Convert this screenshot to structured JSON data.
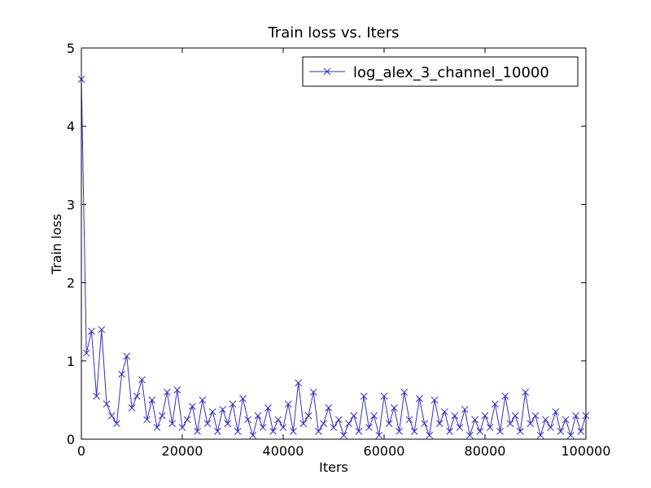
{
  "chart_data": {
    "type": "line",
    "title": "Train loss  vs. Iters",
    "xlabel": "Iters",
    "ylabel": "Train loss",
    "x": [
      0,
      1000,
      2000,
      3000,
      4000,
      5000,
      6000,
      7000,
      8000,
      9000,
      10000,
      11000,
      12000,
      13000,
      14000,
      15000,
      16000,
      17000,
      18000,
      19000,
      20000,
      21000,
      22000,
      23000,
      24000,
      25000,
      26000,
      27000,
      28000,
      29000,
      30000,
      31000,
      32000,
      33000,
      34000,
      35000,
      36000,
      37000,
      38000,
      39000,
      40000,
      41000,
      42000,
      43000,
      44000,
      45000,
      46000,
      47000,
      48000,
      49000,
      50000,
      51000,
      52000,
      53000,
      54000,
      55000,
      56000,
      57000,
      58000,
      59000,
      60000,
      61000,
      62000,
      63000,
      64000,
      65000,
      66000,
      67000,
      68000,
      69000,
      70000,
      71000,
      72000,
      73000,
      74000,
      75000,
      76000,
      77000,
      78000,
      79000,
      80000,
      81000,
      82000,
      83000,
      84000,
      85000,
      86000,
      87000,
      88000,
      89000,
      90000,
      91000,
      92000,
      93000,
      94000,
      95000,
      96000,
      97000,
      98000,
      99000,
      100000
    ],
    "series": [
      {
        "name": "log_alex_3_channel_10000",
        "color": "#3030c0",
        "marker": "x",
        "values": [
          4.6,
          1.1,
          1.38,
          0.55,
          1.4,
          0.45,
          0.3,
          0.2,
          0.83,
          1.06,
          0.4,
          0.55,
          0.76,
          0.25,
          0.5,
          0.15,
          0.3,
          0.6,
          0.2,
          0.63,
          0.15,
          0.25,
          0.42,
          0.1,
          0.5,
          0.2,
          0.35,
          0.1,
          0.38,
          0.2,
          0.45,
          0.1,
          0.52,
          0.25,
          0.05,
          0.3,
          0.15,
          0.4,
          0.1,
          0.25,
          0.15,
          0.45,
          0.1,
          0.72,
          0.2,
          0.3,
          0.6,
          0.1,
          0.2,
          0.4,
          0.15,
          0.25,
          0.05,
          0.2,
          0.3,
          0.1,
          0.55,
          0.15,
          0.3,
          0.05,
          0.55,
          0.2,
          0.4,
          0.1,
          0.6,
          0.25,
          0.1,
          0.52,
          0.2,
          0.05,
          0.5,
          0.2,
          0.35,
          0.1,
          0.3,
          0.15,
          0.38,
          0.05,
          0.25,
          0.1,
          0.3,
          0.15,
          0.45,
          0.1,
          0.55,
          0.2,
          0.3,
          0.1,
          0.6,
          0.2,
          0.3,
          0.05,
          0.25,
          0.15,
          0.35,
          0.1,
          0.25,
          0.05,
          0.3,
          0.1,
          0.3
        ]
      }
    ],
    "xlim": [
      0,
      100000
    ],
    "xticks": [
      0,
      20000,
      40000,
      60000,
      80000,
      100000
    ],
    "ylim": [
      0,
      5
    ],
    "yticks": [
      0,
      1,
      2,
      3,
      4,
      5
    ],
    "legend": "upper right",
    "grid": false
  }
}
